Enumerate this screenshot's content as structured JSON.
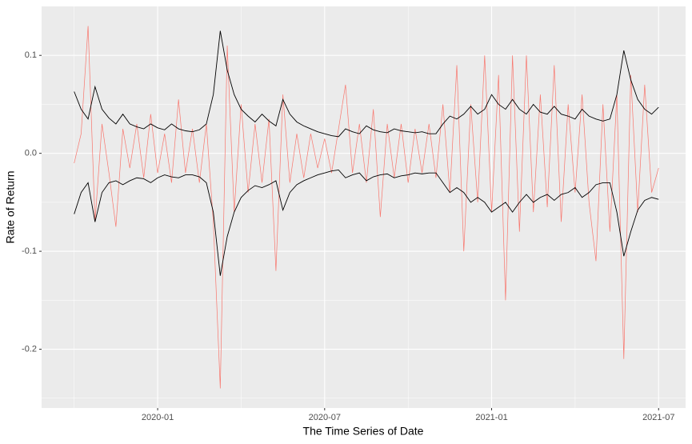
{
  "chart_data": {
    "type": "line",
    "xlabel": "The Time Series of Date",
    "ylabel": "Rate of Return",
    "x": [
      -3,
      -2.75,
      -2.5,
      -2.25,
      -2,
      -1.75,
      -1.5,
      -1.25,
      -1,
      -0.75,
      -0.5,
      -0.25,
      0,
      0.25,
      0.5,
      0.75,
      1,
      1.25,
      1.5,
      1.75,
      2,
      2.25,
      2.5,
      2.75,
      3,
      3.25,
      3.5,
      3.75,
      4,
      4.25,
      4.5,
      4.75,
      5,
      5.25,
      5.5,
      5.75,
      6,
      6.25,
      6.5,
      6.75,
      7,
      7.25,
      7.5,
      7.75,
      8,
      8.25,
      8.5,
      8.75,
      9,
      9.25,
      9.5,
      9.75,
      10,
      10.25,
      10.5,
      10.75,
      11,
      11.25,
      11.5,
      11.75,
      12,
      12.25,
      12.5,
      12.75,
      13,
      13.25,
      13.5,
      13.75,
      14,
      14.25,
      14.5,
      14.75,
      15,
      15.25,
      15.5,
      15.75,
      16,
      16.25,
      16.5,
      16.75,
      17,
      17.25,
      17.5,
      17.75,
      18
    ],
    "series": [
      {
        "color": "#f8766d",
        "values": [
          -0.01,
          0.02,
          0.13,
          -0.07,
          0.03,
          -0.02,
          -0.075,
          0.025,
          -0.015,
          0.03,
          -0.025,
          0.04,
          -0.02,
          0.02,
          -0.03,
          0.055,
          -0.02,
          0.025,
          -0.03,
          0.03,
          -0.07,
          -0.24,
          0.11,
          -0.06,
          0.05,
          -0.04,
          0.03,
          -0.03,
          0.035,
          -0.12,
          0.06,
          -0.03,
          0.02,
          -0.025,
          0.02,
          -0.015,
          0.015,
          -0.02,
          0.025,
          0.07,
          -0.02,
          0.03,
          -0.03,
          0.045,
          -0.065,
          0.03,
          -0.025,
          0.03,
          -0.03,
          0.025,
          -0.02,
          0.03,
          -0.025,
          0.05,
          -0.04,
          0.09,
          -0.1,
          0.05,
          -0.05,
          0.1,
          -0.06,
          0.08,
          -0.15,
          0.1,
          -0.08,
          0.1,
          -0.06,
          0.06,
          -0.055,
          0.09,
          -0.07,
          0.05,
          -0.04,
          0.06,
          -0.05,
          -0.11,
          0.05,
          -0.08,
          0.06,
          -0.21,
          0.08,
          -0.06,
          0.07,
          -0.04,
          -0.015
        ]
      },
      {
        "color": "#000000",
        "values": [
          0.063,
          0.045,
          0.035,
          0.068,
          0.045,
          0.036,
          0.03,
          0.04,
          0.03,
          0.027,
          0.025,
          0.03,
          0.026,
          0.024,
          0.03,
          0.025,
          0.023,
          0.022,
          0.024,
          0.03,
          0.06,
          0.125,
          0.085,
          0.06,
          0.045,
          0.038,
          0.032,
          0.04,
          0.033,
          0.028,
          0.055,
          0.04,
          0.032,
          0.028,
          0.025,
          0.022,
          0.02,
          0.018,
          0.017,
          0.025,
          0.022,
          0.02,
          0.028,
          0.024,
          0.022,
          0.021,
          0.025,
          0.023,
          0.022,
          0.021,
          0.022,
          0.02,
          0.02,
          0.03,
          0.038,
          0.035,
          0.04,
          0.048,
          0.04,
          0.045,
          0.06,
          0.05,
          0.045,
          0.055,
          0.045,
          0.04,
          0.05,
          0.042,
          0.04,
          0.048,
          0.04,
          0.038,
          0.035,
          0.045,
          0.038,
          0.035,
          0.033,
          0.035,
          0.06,
          0.105,
          0.075,
          0.055,
          0.045,
          0.04,
          0.047
        ]
      },
      {
        "color": "#000000",
        "values": [
          -0.062,
          -0.04,
          -0.03,
          -0.07,
          -0.04,
          -0.03,
          -0.028,
          -0.032,
          -0.028,
          -0.025,
          -0.026,
          -0.03,
          -0.025,
          -0.022,
          -0.024,
          -0.025,
          -0.022,
          -0.022,
          -0.024,
          -0.03,
          -0.06,
          -0.125,
          -0.085,
          -0.06,
          -0.045,
          -0.038,
          -0.033,
          -0.035,
          -0.032,
          -0.028,
          -0.058,
          -0.04,
          -0.032,
          -0.028,
          -0.025,
          -0.022,
          -0.02,
          -0.018,
          -0.017,
          -0.025,
          -0.022,
          -0.02,
          -0.028,
          -0.024,
          -0.022,
          -0.021,
          -0.025,
          -0.023,
          -0.022,
          -0.02,
          -0.021,
          -0.02,
          -0.02,
          -0.03,
          -0.04,
          -0.035,
          -0.04,
          -0.05,
          -0.045,
          -0.05,
          -0.06,
          -0.055,
          -0.05,
          -0.06,
          -0.05,
          -0.042,
          -0.05,
          -0.045,
          -0.042,
          -0.048,
          -0.042,
          -0.04,
          -0.035,
          -0.045,
          -0.04,
          -0.032,
          -0.03,
          -0.03,
          -0.06,
          -0.105,
          -0.08,
          -0.058,
          -0.048,
          -0.045,
          -0.047
        ]
      }
    ],
    "xlim": [
      -4.17,
      18.97
    ],
    "xticks": [
      {
        "value": 0,
        "label": "2020-01"
      },
      {
        "value": 6,
        "label": "2020-07"
      },
      {
        "value": 12,
        "label": "2021-01"
      },
      {
        "value": 18,
        "label": "2021-07"
      }
    ],
    "ylim": [
      -0.26,
      0.15
    ],
    "yticks": [
      -0.2,
      -0.1,
      {
        "value": 0,
        "label": "0.0"
      },
      0.1
    ],
    "grid": true,
    "background": "#ebebeb"
  }
}
